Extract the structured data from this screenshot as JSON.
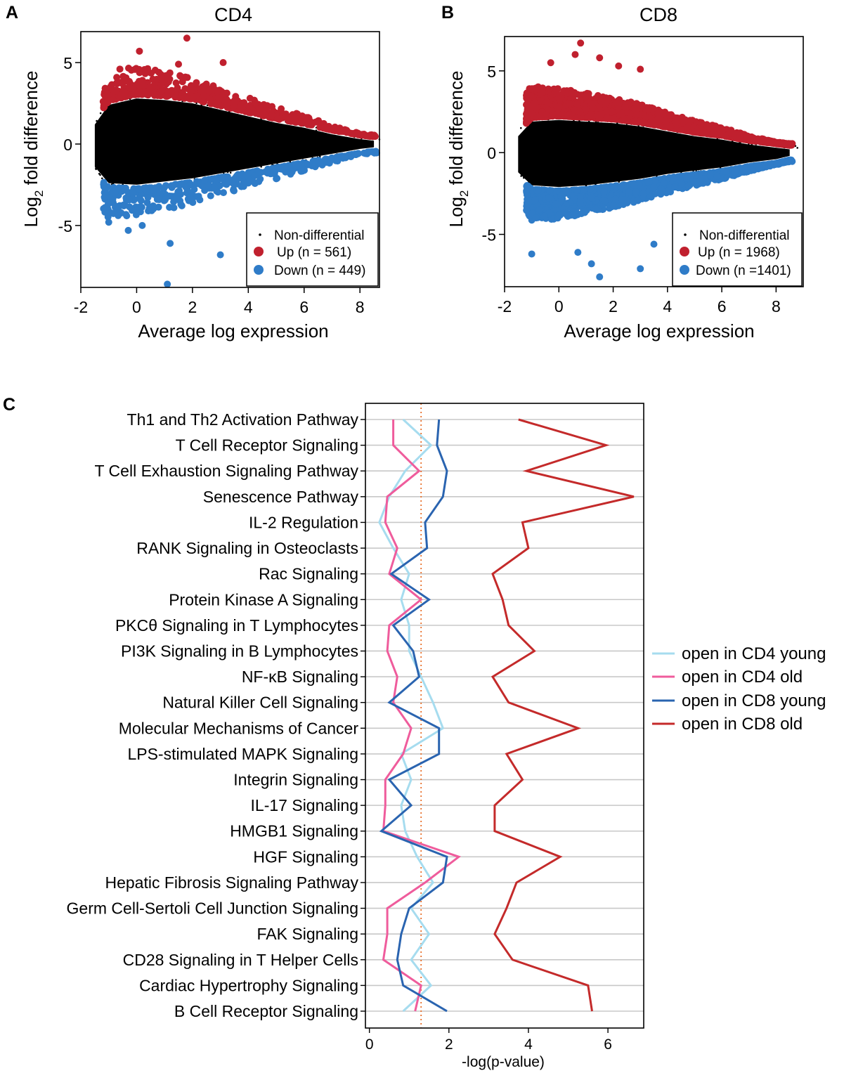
{
  "figure": {
    "panel_labels": [
      "A",
      "B",
      "C"
    ]
  },
  "colors": {
    "up": "#c0202e",
    "down": "#2f7cc8",
    "nondiff": "#000000",
    "cd4_young": "#a6dcef",
    "cd4_old": "#ef5c9c",
    "cd8_young": "#2a64b0",
    "cd8_old": "#c42a2a",
    "threshold": "#e8702a",
    "grid": "#c8c8c8"
  },
  "chart_data": [
    {
      "id": "A",
      "type": "scatter",
      "title": "CD4",
      "xlabel": "Average log expression",
      "ylabel": "Log2 fold difference",
      "ylabel_main": "Log",
      "ylabel_sub": "2",
      "ylabel_rest": " fold difference",
      "xlim": [
        -2,
        8.7
      ],
      "ylim": [
        -8.8,
        6.9
      ],
      "xticks": [
        -2,
        0,
        2,
        4,
        6,
        8
      ],
      "xtick_labels": [
        "-2",
        "0",
        "2",
        "4",
        "6",
        "8"
      ],
      "yticks": [
        5,
        0,
        -5
      ],
      "ytick_labels": [
        "5",
        "0",
        "-5"
      ],
      "legend_position": "bottom-right",
      "legend": {
        "nondiff": "Non-differential",
        "up": "Up (n = 561)",
        "down": "Down (n = 449)"
      },
      "counts": {
        "up": 561,
        "down": 449
      },
      "envelope": {
        "x": [
          -1.5,
          -1.0,
          0.0,
          1.0,
          2.0,
          3.0,
          4.0,
          5.0,
          6.0,
          7.0,
          8.0,
          8.5
        ],
        "upper": [
          1.2,
          2.4,
          2.8,
          2.7,
          2.5,
          2.1,
          1.7,
          1.3,
          1.0,
          0.6,
          0.3,
          0.2
        ],
        "lower": [
          -1.4,
          -2.4,
          -2.5,
          -2.3,
          -2.1,
          -1.8,
          -1.5,
          -1.2,
          -0.9,
          -0.6,
          -0.3,
          -0.2
        ]
      },
      "up_points": [
        {
          "x": 0.1,
          "y": 5.7
        },
        {
          "x": 1.8,
          "y": 6.5
        },
        {
          "x": 3.1,
          "y": 5.0
        },
        {
          "x": -0.6,
          "y": 4.6
        },
        {
          "x": 1.5,
          "y": 4.9
        },
        {
          "x": 0.8,
          "y": 4.4
        }
      ],
      "down_points": [
        {
          "x": 1.2,
          "y": -6.1
        },
        {
          "x": 3.0,
          "y": -6.8
        },
        {
          "x": 1.1,
          "y": -8.6
        },
        {
          "x": -1.0,
          "y": -4.8
        },
        {
          "x": 0.2,
          "y": -5.0
        },
        {
          "x": -0.3,
          "y": -5.3
        }
      ]
    },
    {
      "id": "B",
      "type": "scatter",
      "title": "CD8",
      "xlabel": "Average log expression",
      "ylabel": "Log2 fold difference",
      "ylabel_main": "Log",
      "ylabel_sub": "2",
      "ylabel_rest": " fold difference",
      "xlim": [
        -2,
        9
      ],
      "ylim": [
        -8.2,
        7.1
      ],
      "xticks": [
        -2,
        0,
        2,
        4,
        6,
        8
      ],
      "xtick_labels": [
        "-2",
        "0",
        "2",
        "4",
        "6",
        "8"
      ],
      "yticks": [
        5,
        0,
        -5
      ],
      "ytick_labels": [
        "5",
        "0",
        "-5"
      ],
      "legend_position": "bottom-right",
      "legend": {
        "nondiff": "Non-differential",
        "up": "Up (n = 1968)",
        "down": "Down (n =1401)"
      },
      "counts": {
        "up": 1968,
        "down": 1401
      },
      "envelope": {
        "x": [
          -1.5,
          -1.0,
          0.0,
          1.0,
          2.0,
          3.0,
          4.0,
          5.0,
          6.0,
          7.0,
          8.0,
          8.5
        ],
        "upper": [
          1.0,
          1.9,
          2.0,
          1.9,
          1.8,
          1.6,
          1.3,
          1.0,
          0.8,
          0.5,
          0.3,
          0.2
        ],
        "lower": [
          -1.2,
          -2.0,
          -2.1,
          -2.0,
          -1.8,
          -1.6,
          -1.3,
          -1.1,
          -0.9,
          -0.6,
          -0.4,
          -0.2
        ]
      },
      "up_points": [
        {
          "x": 0.8,
          "y": 6.7
        },
        {
          "x": 0.6,
          "y": 6.0
        },
        {
          "x": 2.2,
          "y": 5.3
        },
        {
          "x": 1.5,
          "y": 5.8
        },
        {
          "x": -0.3,
          "y": 5.5
        },
        {
          "x": 3.0,
          "y": 5.1
        }
      ],
      "down_points": [
        {
          "x": -1.0,
          "y": -6.2
        },
        {
          "x": 0.7,
          "y": -6.1
        },
        {
          "x": 1.2,
          "y": -6.8
        },
        {
          "x": 1.5,
          "y": -7.6
        },
        {
          "x": 3.0,
          "y": -7.1
        },
        {
          "x": 3.5,
          "y": -5.6
        }
      ]
    },
    {
      "id": "C",
      "type": "line",
      "orientation": "horizontal-categories",
      "xlabel": "-log(p-value)",
      "xlim": [
        -0.1,
        6.9
      ],
      "xticks": [
        0,
        2,
        4,
        6
      ],
      "xtick_labels": [
        "0",
        "2",
        "4",
        "6"
      ],
      "threshold": 1.3,
      "legend_position": "right",
      "categories": [
        "Th1 and Th2 Activation Pathway",
        "T Cell Receptor Signaling",
        "T Cell Exhaustion Signaling Pathway",
        "Senescence Pathway",
        "IL-2 Regulation",
        "RANK Signaling in Osteoclasts",
        "Rac Signaling",
        "Protein Kinase A Signaling",
        "PKCθ Signaling in T Lymphocytes",
        "PI3K Signaling in B Lymphocytes",
        "NF-κB Signaling",
        "Natural Killer Cell Signaling",
        "Molecular Mechanisms of Cancer",
        "LPS-stimulated MAPK Signaling",
        "Integrin Signaling",
        "IL-17 Signaling",
        "HMGB1 Signaling",
        "HGF Signaling",
        "Hepatic Fibrosis Signaling Pathway",
        "Germ Cell-Sertoli Cell Junction Signaling",
        "FAK Signaling",
        "CD28 Signaling in T Helper Cells",
        "Cardiac Hypertrophy Signaling",
        "B Cell Receptor Signaling"
      ],
      "series": [
        {
          "name": "open in CD4 young",
          "color_key": "cd4_young",
          "values": [
            0.85,
            1.55,
            0.9,
            0.5,
            0.25,
            0.6,
            1.0,
            0.8,
            1.0,
            1.0,
            1.3,
            1.6,
            1.85,
            0.8,
            1.05,
            0.8,
            0.9,
            1.2,
            1.6,
            1.05,
            1.5,
            1.05,
            1.55,
            0.85
          ]
        },
        {
          "name": "open in CD4 old",
          "color_key": "cd4_old",
          "values": [
            0.6,
            0.6,
            1.25,
            0.45,
            0.4,
            0.7,
            0.5,
            1.3,
            0.5,
            0.45,
            0.7,
            0.6,
            1.05,
            0.85,
            0.4,
            0.4,
            0.35,
            2.25,
            1.4,
            0.45,
            0.45,
            0.35,
            1.3,
            1.15
          ]
        },
        {
          "name": "open in CD8 young",
          "color_key": "cd8_young",
          "values": [
            1.75,
            1.7,
            1.95,
            1.85,
            1.4,
            1.45,
            0.55,
            1.5,
            0.6,
            1.1,
            1.25,
            0.5,
            1.75,
            1.75,
            0.5,
            1.05,
            0.3,
            1.95,
            1.85,
            1.0,
            0.8,
            0.7,
            0.85,
            1.95
          ]
        },
        {
          "name": "open in CD8 old",
          "color_key": "cd8_old",
          "values": [
            3.75,
            5.95,
            3.95,
            6.65,
            3.85,
            4.0,
            3.1,
            3.35,
            3.5,
            4.15,
            3.1,
            3.5,
            5.25,
            3.45,
            3.85,
            3.15,
            3.15,
            4.8,
            3.7,
            3.45,
            3.15,
            3.6,
            5.5,
            5.6
          ]
        }
      ]
    }
  ]
}
